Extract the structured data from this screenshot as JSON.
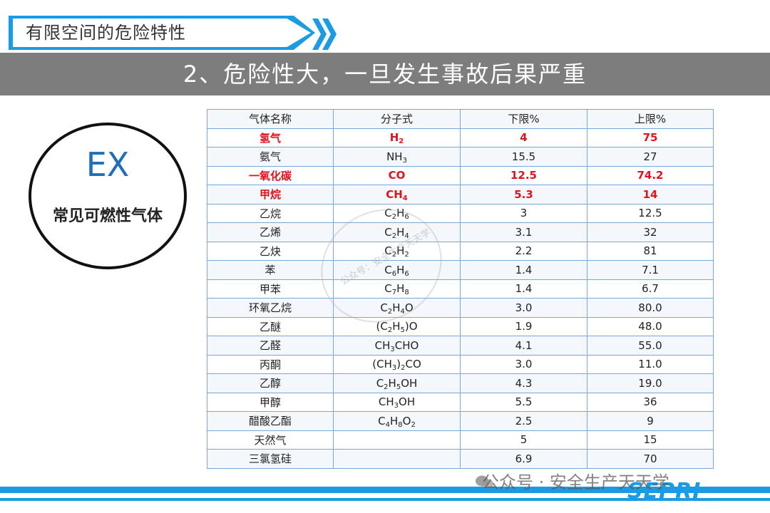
{
  "header": {
    "tab_title": "有限空间的危险特性",
    "banner_title": "2、危险性大，一旦发生事故后果严重"
  },
  "circle": {
    "ex": "EX",
    "label": "常见可燃性气体"
  },
  "table": {
    "headers": [
      "气体名称",
      "分子式",
      "下限%",
      "上限%"
    ],
    "rows": [
      {
        "name": "氢气",
        "formula": "H<sub>2</sub>",
        "lower": "4",
        "upper": "75",
        "highlight": true
      },
      {
        "name": "氨气",
        "formula": "NH<sub>3</sub>",
        "lower": "15.5",
        "upper": "27",
        "highlight": false
      },
      {
        "name": "一氧化碳",
        "formula": "CO",
        "lower": "12.5",
        "upper": "74.2",
        "highlight": true
      },
      {
        "name": "甲烷",
        "formula": "CH<sub>4</sub>",
        "lower": "5.3",
        "upper": "14",
        "highlight": true
      },
      {
        "name": "乙烷",
        "formula": "C<sub>2</sub>H<sub>6</sub>",
        "lower": "3",
        "upper": "12.5",
        "highlight": false
      },
      {
        "name": "乙烯",
        "formula": "C<sub>2</sub>H<sub>4</sub>",
        "lower": "3.1",
        "upper": "32",
        "highlight": false
      },
      {
        "name": "乙炔",
        "formula": "C<sub>2</sub>H<sub>2</sub>",
        "lower": "2.2",
        "upper": "81",
        "highlight": false
      },
      {
        "name": "苯",
        "formula": "C<sub>6</sub>H<sub>6</sub>",
        "lower": "1.4",
        "upper": "7.1",
        "highlight": false
      },
      {
        "name": "甲苯",
        "formula": "C<sub>7</sub>H<sub>8</sub>",
        "lower": "1.4",
        "upper": "6.7",
        "highlight": false
      },
      {
        "name": "环氧乙烷",
        "formula": "C<sub>2</sub>H<sub>4</sub>O",
        "lower": "3.0",
        "upper": "80.0",
        "highlight": false
      },
      {
        "name": "乙醚",
        "formula": "(C<sub>2</sub>H<sub>5</sub>)O",
        "lower": "1.9",
        "upper": "48.0",
        "highlight": false
      },
      {
        "name": "乙醛",
        "formula": "CH<sub>3</sub>CHO",
        "lower": "4.1",
        "upper": "55.0",
        "highlight": false
      },
      {
        "name": "丙酮",
        "formula": "(CH<sub>3</sub>)<sub>2</sub>CO",
        "lower": "3.0",
        "upper": "11.0",
        "highlight": false
      },
      {
        "name": "乙醇",
        "formula": "C<sub>2</sub>H<sub>5</sub>OH",
        "lower": "4.3",
        "upper": "19.0",
        "highlight": false
      },
      {
        "name": "甲醇",
        "formula": "CH<sub>3</sub>OH",
        "lower": "5.5",
        "upper": "36",
        "highlight": false
      },
      {
        "name": "醋酸乙酯",
        "formula": "C<sub>4</sub>H<sub>8</sub>O<sub>2</sub>",
        "lower": "2.5",
        "upper": "9",
        "highlight": false
      },
      {
        "name": "天然气",
        "formula": "",
        "lower": "5",
        "upper": "15",
        "highlight": false
      },
      {
        "name": "三氯氢硅",
        "formula": "",
        "lower": "6.9",
        "upper": "70",
        "highlight": false
      }
    ]
  },
  "watermark": {
    "seal_text": "公众号：安全生产天天学",
    "wechat_text": "公众号 · 安全生产天天学"
  },
  "footer": {
    "logo": "SEPRI"
  },
  "colors": {
    "accent_blue": "#1a9be3",
    "banner_grey": "#7d7d7d",
    "highlight_red": "#e0121b",
    "ex_blue": "#1f6fb8"
  }
}
